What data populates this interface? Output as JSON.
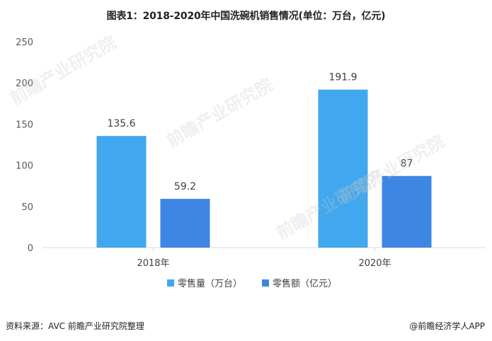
{
  "chart_data": {
    "type": "bar",
    "title": "图表1：2018-2020年中国洗碗机销售情况(单位：万台，亿元)",
    "categories": [
      "2018年",
      "2020年"
    ],
    "series": [
      {
        "name": "零售量（万台）",
        "values": [
          135.6,
          191.9
        ],
        "labels": [
          "135.6",
          "191.9"
        ],
        "color": "#41A7EE"
      },
      {
        "name": "零售额（亿元）",
        "values": [
          59.2,
          87
        ],
        "labels": [
          "59.2",
          "87"
        ],
        "color": "#3E86E3"
      }
    ],
    "ylim": [
      0,
      250
    ],
    "yticks": [
      "0",
      "50",
      "100",
      "150",
      "200",
      "250"
    ],
    "grid": false,
    "legend_position": "bottom"
  },
  "footer": {
    "source": "资料来源：AVC 前瞻产业研究院整理",
    "brand": "@前瞻经济学人APP"
  },
  "watermark": {
    "text": "前瞻产业研究院"
  }
}
